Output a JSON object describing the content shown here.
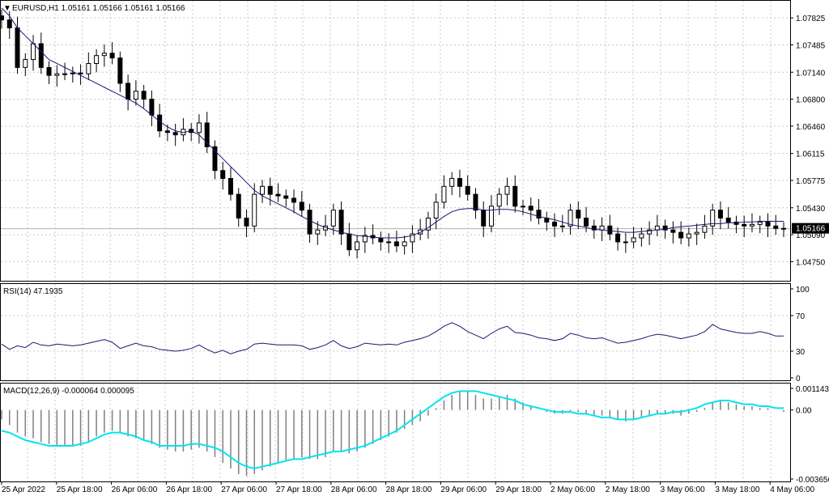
{
  "header": {
    "symbol_line": "EURUSD,H1  1.05161 1.05166 1.05161 1.05166",
    "rsi_label": "RSI(14) 47.1935",
    "macd_label": "MACD(12,26,9) -0.000064 0.000095"
  },
  "colors": {
    "background": "#ffffff",
    "grid": "#c8c8c8",
    "candle": "#000000",
    "ma_line": "#191970",
    "rsi_line": "#191970",
    "macd_signal": "#00e5ee",
    "macd_hist": "#808080",
    "current_price_box": "#000000"
  },
  "chart_data": [
    {
      "type": "candlestick",
      "title": "EURUSD,H1",
      "ylim": [
        1.0455,
        1.08
      ],
      "y_ticks": [
        "1.07825",
        "1.07485",
        "1.07140",
        "1.06800",
        "1.06460",
        "1.06115",
        "1.05775",
        "1.05430",
        "1.05090",
        "1.04750"
      ],
      "current_price": "1.05166",
      "x_tick_labels": [
        "25 Apr 2022",
        "25 Apr 18:00",
        "26 Apr 06:00",
        "26 Apr 18:00",
        "27 Apr 06:00",
        "27 Apr 18:00",
        "28 Apr 06:00",
        "28 Apr 18:00",
        "29 Apr 06:00",
        "29 Apr 18:00",
        "2 May 06:00",
        "2 May 18:00",
        "3 May 06:00",
        "3 May 18:00",
        "4 May 06:00"
      ],
      "close_path": [
        1.078,
        1.077,
        1.072,
        1.073,
        1.075,
        1.072,
        1.071,
        1.0712,
        1.0712,
        1.0713,
        1.0712,
        1.0725,
        1.0735,
        1.0738,
        1.0732,
        1.07,
        1.068,
        1.069,
        1.068,
        1.066,
        1.064,
        1.0638,
        1.0635,
        1.0642,
        1.0638,
        1.065,
        1.062,
        1.059,
        1.058,
        1.056,
        1.053,
        1.052,
        1.056,
        1.057,
        1.056,
        1.0558,
        1.0555,
        1.055,
        1.054,
        1.051,
        1.0515,
        1.052,
        1.054,
        1.051,
        1.049,
        1.05,
        1.0508,
        1.0505,
        1.05,
        1.05,
        1.0495,
        1.05,
        1.051,
        1.0515,
        1.053,
        1.055,
        1.057,
        1.058,
        1.057,
        1.056,
        1.054,
        1.052,
        1.0545,
        1.056,
        1.057,
        1.0545,
        1.0545,
        1.054,
        1.053,
        1.0525,
        1.052,
        1.052,
        1.054,
        1.053,
        1.052,
        1.0515,
        1.052,
        1.051,
        1.05,
        1.05,
        1.0505,
        1.051,
        1.0515,
        1.052,
        1.0515,
        1.0512,
        1.0505,
        1.051,
        1.0512,
        1.052,
        1.054,
        1.053,
        1.0525,
        1.0522,
        1.052,
        1.0522,
        1.0525,
        1.052,
        1.0517,
        1.0517
      ],
      "ma_path": [
        1.0795,
        1.0785,
        1.077,
        1.076,
        1.075,
        1.074,
        1.073,
        1.0725,
        1.072,
        1.0715,
        1.071,
        1.0705,
        1.07,
        1.0695,
        1.069,
        1.0685,
        1.068,
        1.0675,
        1.0668,
        1.066,
        1.0652,
        1.0645,
        1.064,
        1.0638,
        1.064,
        1.0635,
        1.0625,
        1.0615,
        1.0605,
        1.0595,
        1.0585,
        1.0575,
        1.0565,
        1.0558,
        1.0553,
        1.0548,
        1.0543,
        1.0538,
        1.0532,
        1.0527,
        1.0522,
        1.0518,
        1.0515,
        1.0512,
        1.051,
        1.0508,
        1.0507,
        1.0506,
        1.0505,
        1.0505,
        1.0505,
        1.0506,
        1.0508,
        1.0512,
        1.0518,
        1.0525,
        1.0532,
        1.0538,
        1.0541,
        1.0542,
        1.0542,
        1.054,
        1.054,
        1.0541,
        1.0541,
        1.054,
        1.0538,
        1.0535,
        1.0532,
        1.053,
        1.0528,
        1.0525,
        1.0522,
        1.052,
        1.0518,
        1.0516,
        1.0515,
        1.0514,
        1.0513,
        1.0512,
        1.0512,
        1.0513,
        1.0514,
        1.0515,
        1.0516,
        1.0518,
        1.0519,
        1.052,
        1.0521,
        1.0522,
        1.0523,
        1.0523,
        1.0524,
        1.0524,
        1.0525,
        1.0525,
        1.0526,
        1.0526,
        1.0526,
        1.0526
      ]
    },
    {
      "type": "line",
      "title": "RSI(14) 47.1935",
      "ylim": [
        0,
        100
      ],
      "y_ticks": [
        100,
        70,
        30,
        0
      ],
      "values": [
        38,
        32,
        36,
        34,
        40,
        37,
        36,
        38,
        37,
        36,
        37,
        39,
        41,
        43,
        40,
        33,
        36,
        39,
        36,
        35,
        32,
        31,
        30,
        31,
        33,
        37,
        32,
        28,
        31,
        27,
        30,
        32,
        38,
        39,
        38,
        37,
        37,
        37,
        36,
        32,
        34,
        37,
        42,
        36,
        33,
        35,
        39,
        38,
        37,
        38,
        37,
        40,
        42,
        44,
        47,
        52,
        58,
        62,
        58,
        52,
        48,
        44,
        50,
        55,
        58,
        51,
        50,
        48,
        45,
        44,
        42,
        44,
        50,
        48,
        45,
        44,
        45,
        42,
        39,
        40,
        42,
        44,
        47,
        49,
        48,
        46,
        44,
        46,
        48,
        52,
        60,
        55,
        53,
        51,
        50,
        50,
        52,
        50,
        47,
        47
      ]
    },
    {
      "type": "bar+line",
      "title": "MACD(12,26,9) -0.000064 0.000095",
      "ylim": [
        -0.003656,
        0.001143
      ],
      "y_ticks": [
        "0.001143",
        "0.00",
        "-0.003656"
      ],
      "histogram": [
        -0.0005,
        -0.0008,
        -0.0012,
        -0.0014,
        -0.0015,
        -0.0017,
        -0.0018,
        -0.0019,
        -0.0019,
        -0.0019,
        -0.0019,
        -0.0017,
        -0.0014,
        -0.0012,
        -0.0011,
        -0.0012,
        -0.0014,
        -0.0015,
        -0.0016,
        -0.0018,
        -0.002,
        -0.0021,
        -0.0022,
        -0.0022,
        -0.0021,
        -0.002,
        -0.0022,
        -0.0025,
        -0.0028,
        -0.0031,
        -0.0034,
        -0.0035,
        -0.0034,
        -0.0032,
        -0.003,
        -0.0028,
        -0.0027,
        -0.0026,
        -0.0025,
        -0.0026,
        -0.0026,
        -0.0025,
        -0.0022,
        -0.0022,
        -0.0023,
        -0.0022,
        -0.002,
        -0.0018,
        -0.0016,
        -0.0014,
        -0.0012,
        -0.001,
        -0.0008,
        -0.0006,
        -0.0003,
        0.0001,
        0.0005,
        0.0008,
        0.001,
        0.001,
        0.0008,
        0.0006,
        0.0006,
        0.0007,
        0.0008,
        0.0006,
        0.0004,
        0.0002,
        0.0,
        -0.0001,
        -0.0002,
        -0.0002,
        -0.0001,
        -0.0001,
        -0.0002,
        -0.0003,
        -0.0003,
        -0.0004,
        -0.0005,
        -0.0006,
        -0.0005,
        -0.0004,
        -0.0003,
        -0.0002,
        -0.0002,
        -0.0002,
        -0.0003,
        -0.0002,
        -0.0001,
        0.0001,
        0.0004,
        0.0005,
        0.0004,
        0.0003,
        0.0002,
        0.0002,
        0.0001,
        0.0001,
        0.0,
        -0.0001
      ],
      "signal": [
        -0.0011,
        -0.0012,
        -0.0014,
        -0.0016,
        -0.0017,
        -0.0018,
        -0.0019,
        -0.0019,
        -0.0019,
        -0.0019,
        -0.0018,
        -0.0017,
        -0.0015,
        -0.0013,
        -0.0012,
        -0.0012,
        -0.0013,
        -0.0014,
        -0.0016,
        -0.0017,
        -0.0019,
        -0.0019,
        -0.0019,
        -0.0019,
        -0.0018,
        -0.0018,
        -0.0019,
        -0.002,
        -0.0022,
        -0.0025,
        -0.0028,
        -0.003,
        -0.0031,
        -0.003,
        -0.0029,
        -0.0028,
        -0.0027,
        -0.0026,
        -0.0026,
        -0.0025,
        -0.0024,
        -0.0023,
        -0.0022,
        -0.0022,
        -0.0021,
        -0.002,
        -0.0019,
        -0.0017,
        -0.0015,
        -0.0013,
        -0.0011,
        -0.0008,
        -0.0005,
        -0.0002,
        0.0001,
        0.0004,
        0.0007,
        0.0009,
        0.001,
        0.001,
        0.001,
        0.0009,
        0.0008,
        0.0007,
        0.0006,
        0.0005,
        0.0003,
        0.0002,
        0.0001,
        -0.0,
        -0.0001,
        -0.0001,
        -0.0001,
        -0.0002,
        -0.0002,
        -0.0003,
        -0.0004,
        -0.0004,
        -0.0005,
        -0.0005,
        -0.0005,
        -0.0004,
        -0.0003,
        -0.0002,
        -0.0002,
        -0.0001,
        -0.0001,
        -0.0,
        0.0001,
        0.0003,
        0.0004,
        0.0005,
        0.0005,
        0.0004,
        0.0003,
        0.0003,
        0.0002,
        0.0002,
        0.0001,
        0.0001
      ]
    }
  ]
}
